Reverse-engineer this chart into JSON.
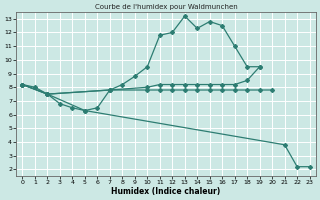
{
  "title": "Courbe de l'humidex pour Waldmunchen",
  "xlabel": "Humidex (Indice chaleur)",
  "xlim": [
    -0.5,
    23.5
  ],
  "ylim": [
    1.5,
    13.5
  ],
  "xticks": [
    0,
    1,
    2,
    3,
    4,
    5,
    6,
    7,
    8,
    9,
    10,
    11,
    12,
    13,
    14,
    15,
    16,
    17,
    18,
    19,
    20,
    21,
    22,
    23
  ],
  "yticks": [
    2,
    3,
    4,
    5,
    6,
    7,
    8,
    9,
    10,
    11,
    12,
    13
  ],
  "bg_color": "#cce8e4",
  "grid_color": "#ffffff",
  "line_color": "#2d7d72",
  "s1_x": [
    0,
    1,
    2,
    3,
    4,
    5,
    6,
    7,
    8,
    9,
    10,
    11,
    12,
    13,
    14,
    15,
    16,
    17,
    18,
    19
  ],
  "s1_y": [
    8.2,
    8.0,
    7.5,
    6.8,
    6.5,
    6.3,
    6.5,
    7.8,
    8.2,
    8.8,
    9.5,
    11.8,
    12.0,
    13.2,
    12.3,
    12.8,
    12.5,
    11.0,
    9.5,
    9.5
  ],
  "s2_x": [
    0,
    2,
    7,
    10,
    11,
    12,
    13,
    14,
    15,
    16,
    17,
    18,
    19
  ],
  "s2_y": [
    8.2,
    7.5,
    7.8,
    8.0,
    8.2,
    8.2,
    8.2,
    8.2,
    8.2,
    8.2,
    8.2,
    8.5,
    9.5
  ],
  "s3_x": [
    0,
    2,
    7,
    10,
    11,
    12,
    13,
    14,
    15,
    16,
    17,
    18,
    19,
    20
  ],
  "s3_y": [
    8.2,
    7.5,
    7.8,
    7.8,
    7.8,
    7.8,
    7.8,
    7.8,
    7.8,
    7.8,
    7.8,
    7.8,
    7.8,
    7.8
  ],
  "s4_x": [
    0,
    2,
    5,
    21,
    22,
    23
  ],
  "s4_y": [
    8.2,
    7.5,
    6.3,
    3.8,
    2.2,
    2.2
  ]
}
